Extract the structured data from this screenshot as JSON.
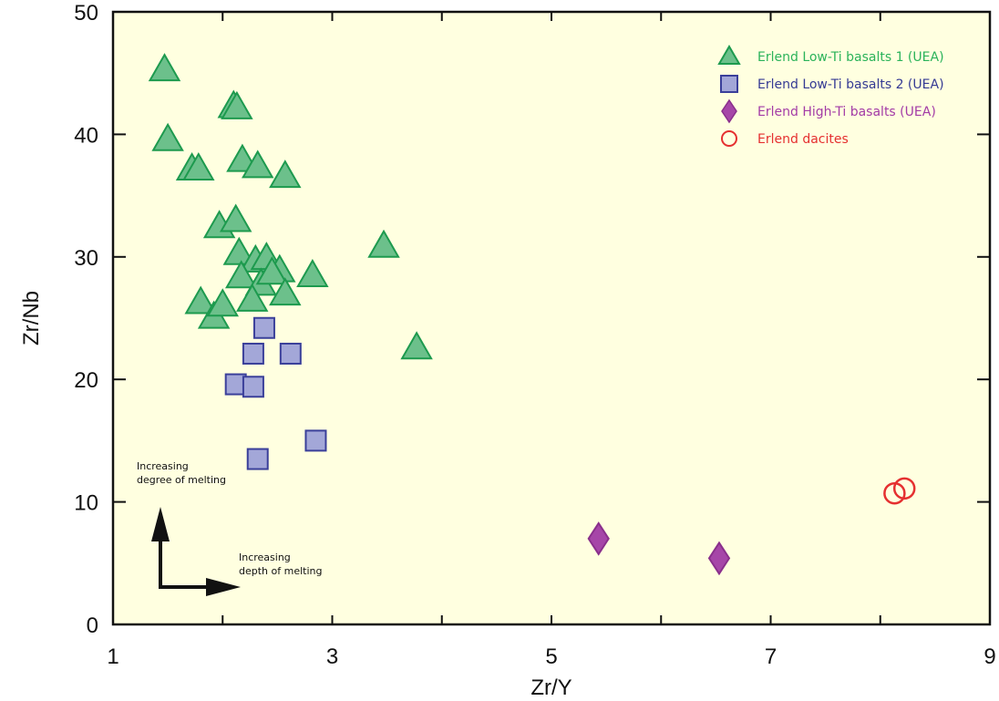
{
  "chart_data": {
    "type": "scatter",
    "title": "",
    "xlabel": "Zr/Y",
    "ylabel": "Zr/Nb",
    "xlim": [
      1,
      9
    ],
    "ylim": [
      0,
      50
    ],
    "x_ticks": [
      1,
      3,
      5,
      7,
      9
    ],
    "y_ticks": [
      0,
      10,
      20,
      30,
      40,
      50
    ],
    "grid": false,
    "background_color": "#ffffe0",
    "legend_position": "top-right",
    "series": [
      {
        "name": "Erlend Low-Ti basalts 1 (UEA)",
        "marker": "triangle",
        "fill": "#6cc08b",
        "stroke": "#1d9a4e",
        "text_color": "#2bb35a",
        "points": [
          [
            1.47,
            45.3
          ],
          [
            1.5,
            39.6
          ],
          [
            1.72,
            37.2
          ],
          [
            1.78,
            37.2
          ],
          [
            2.1,
            42.3
          ],
          [
            2.13,
            42.2
          ],
          [
            2.18,
            37.9
          ],
          [
            2.32,
            37.4
          ],
          [
            2.57,
            36.6
          ],
          [
            1.97,
            32.5
          ],
          [
            2.12,
            33.0
          ],
          [
            2.15,
            30.3
          ],
          [
            2.3,
            29.7
          ],
          [
            2.4,
            29.9
          ],
          [
            2.52,
            28.9
          ],
          [
            2.17,
            28.4
          ],
          [
            2.35,
            27.8
          ],
          [
            2.45,
            28.7
          ],
          [
            2.27,
            26.5
          ],
          [
            2.57,
            27.0
          ],
          [
            2.82,
            28.5
          ],
          [
            1.8,
            26.3
          ],
          [
            1.92,
            25.1
          ],
          [
            2.0,
            26.1
          ],
          [
            3.47,
            30.9
          ],
          [
            3.77,
            22.6
          ]
        ]
      },
      {
        "name": "Erlend Low-Ti basalts 2 (UEA)",
        "marker": "square",
        "fill": "#a3a7d8",
        "stroke": "#3a3f9a",
        "text_color": "#353a94",
        "points": [
          [
            2.38,
            24.2
          ],
          [
            2.28,
            22.1
          ],
          [
            2.62,
            22.1
          ],
          [
            2.12,
            19.6
          ],
          [
            2.28,
            19.4
          ],
          [
            2.32,
            13.5
          ],
          [
            2.85,
            15.0
          ]
        ]
      },
      {
        "name": "Erlend High-Ti basalts (UEA)",
        "marker": "diamond",
        "fill": "#a646a8",
        "stroke": "#8a2f8c",
        "text_color": "#a33ba6",
        "points": [
          [
            5.43,
            7.0
          ],
          [
            6.53,
            5.4
          ]
        ]
      },
      {
        "name": "Erlend dacites",
        "marker": "circle",
        "fill": "none",
        "stroke": "#e53030",
        "text_color": "#e53030",
        "points": [
          [
            8.13,
            10.7
          ],
          [
            8.22,
            11.1
          ]
        ]
      }
    ],
    "annotations": [
      "Increasing\ndegree of melting",
      "Increasing\ndepth of melting"
    ]
  }
}
